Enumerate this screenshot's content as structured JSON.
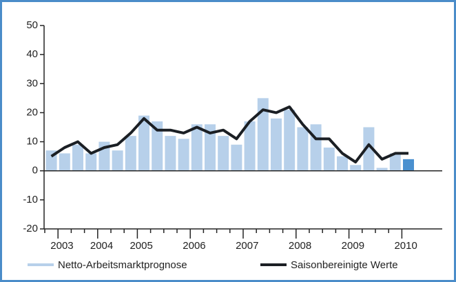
{
  "chart_data": {
    "type": "bar_line",
    "categories": [
      null,
      "2003",
      null,
      null,
      "2004",
      null,
      null,
      "2005",
      null,
      null,
      null,
      "2006",
      null,
      null,
      null,
      "2007",
      null,
      null,
      null,
      "2008",
      null,
      null,
      null,
      "2009",
      null,
      null,
      null,
      "2010"
    ],
    "series": [
      {
        "name": "Netto-Arbeitsmarktprognose",
        "color": "#b7d0ea",
        "bar_colors": [
          "#b7d0ea",
          "#b7d0ea",
          "#b7d0ea",
          "#b7d0ea",
          "#b7d0ea",
          "#b7d0ea",
          "#b7d0ea",
          "#b7d0ea",
          "#b7d0ea",
          "#b7d0ea",
          "#b7d0ea",
          "#b7d0ea",
          "#b7d0ea",
          "#b7d0ea",
          "#b7d0ea",
          "#b7d0ea",
          "#b7d0ea",
          "#b7d0ea",
          "#b7d0ea",
          "#b7d0ea",
          "#b7d0ea",
          "#b7d0ea",
          "#b7d0ea",
          "#b7d0ea",
          "#b7d0ea",
          "#b7d0ea",
          "#b7d0ea",
          "#4a90cf"
        ],
        "values": [
          7,
          6,
          9,
          6,
          10,
          7,
          12,
          19,
          17,
          12,
          11,
          16,
          16,
          12,
          9,
          17,
          25,
          18,
          21,
          15,
          16,
          8,
          5,
          2,
          15,
          1,
          6,
          4
        ]
      },
      {
        "name": "Saisonbereinigte Werte",
        "color": "#1b1f24",
        "values": [
          5,
          8,
          10,
          6,
          8,
          9,
          13,
          18,
          14,
          14,
          13,
          15,
          13,
          14,
          11,
          17,
          21,
          20,
          22,
          16,
          11,
          11,
          6,
          3,
          9,
          4,
          6,
          6
        ]
      }
    ],
    "ylim": [
      -20,
      50
    ],
    "yticks": [
      -20,
      -10,
      0,
      10,
      20,
      30,
      40,
      50
    ]
  }
}
